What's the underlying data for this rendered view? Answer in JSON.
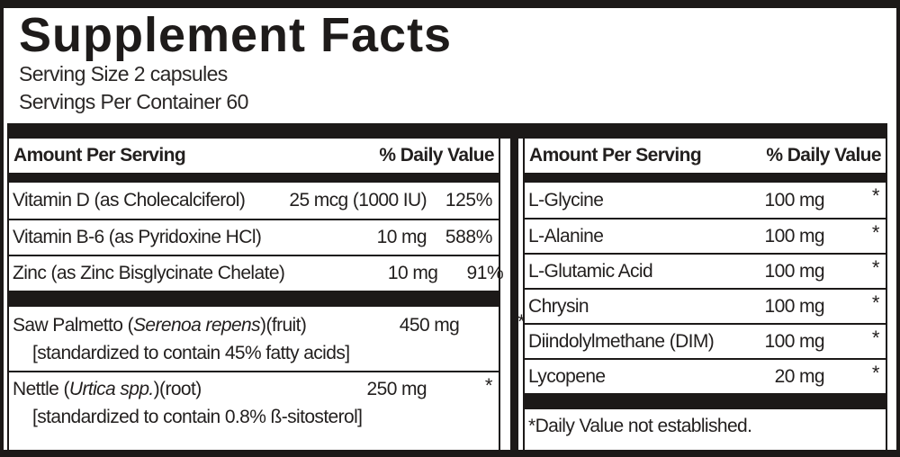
{
  "ink_color": "#1c1918",
  "title": "Supplement Facts",
  "serving_size": "Serving Size 2 capsules",
  "servings_per_container": "Servings Per Container 60",
  "columns": [
    {
      "header": {
        "amount_label": "Amount Per Serving",
        "dv_label": "% Daily Value"
      },
      "rows": [
        {
          "name": "Vitamin D (as Cholecalciferol)",
          "amount": "25 mcg (1000 IU)",
          "dv": "125%"
        },
        {
          "name": "Vitamin B-6 (as Pyridoxine HCl)",
          "amount": "10 mg",
          "dv": "588%"
        },
        {
          "name": "Zinc (as Zinc Bisglycinate Chelate)",
          "amount": "10 mg",
          "dv": "91%"
        },
        {
          "name_pre": "Saw Palmetto (",
          "name_italic": "Serenoa repens",
          "name_post": ")(fruit)",
          "amount": "450 mg",
          "dv": "*",
          "subtext": "[standardized to contain 45% fatty acids]"
        },
        {
          "name_pre": "Nettle (",
          "name_italic": "Urtica spp.",
          "name_post": ")(root)",
          "amount": "250 mg",
          "dv": "*",
          "subtext": "[standardized to contain 0.8% ß-sitosterol]"
        }
      ]
    },
    {
      "header": {
        "amount_label": "Amount Per Serving",
        "dv_label": "% Daily Value"
      },
      "rows": [
        {
          "name": "L-Glycine",
          "amount": "100 mg",
          "dv": "*"
        },
        {
          "name": "L-Alanine",
          "amount": "100 mg",
          "dv": "*"
        },
        {
          "name": "L-Glutamic Acid",
          "amount": "100 mg",
          "dv": "*"
        },
        {
          "name": "Chrysin",
          "amount": "100 mg",
          "dv": "*"
        },
        {
          "name": "Diindolylmethane (DIM)",
          "amount": "100 mg",
          "dv": "*"
        },
        {
          "name": "Lycopene",
          "amount": "20 mg",
          "dv": "*"
        }
      ],
      "footnote": "*Daily Value not established."
    }
  ]
}
